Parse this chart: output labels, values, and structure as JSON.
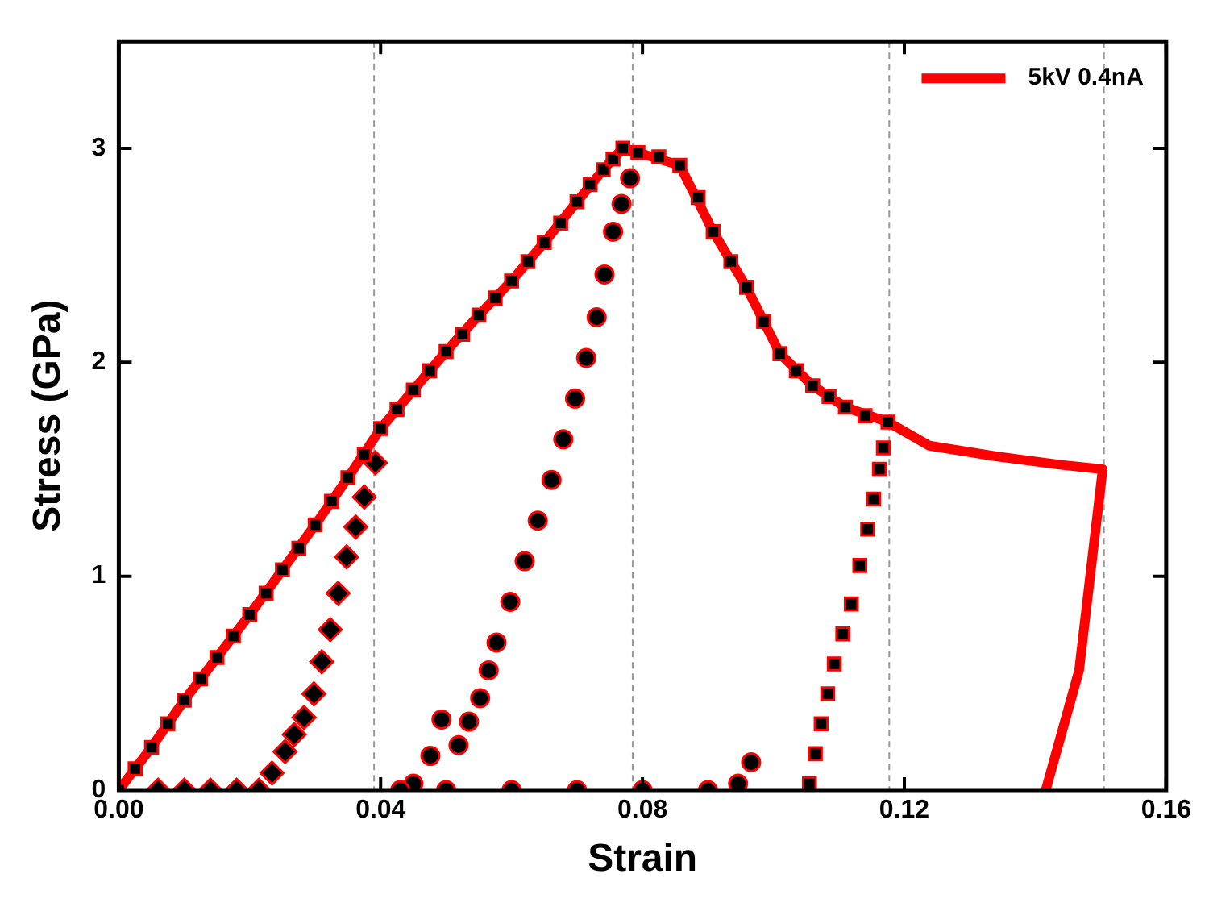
{
  "chart_data": {
    "type": "line",
    "xlabel": "Strain",
    "ylabel": "Stress (GPa)",
    "xlim": [
      0,
      0.16
    ],
    "ylim": [
      0,
      3.5
    ],
    "xticks": [
      {
        "value": 0,
        "label": "0.00"
      },
      {
        "value": 0.04,
        "label": "0.04"
      },
      {
        "value": 0.08,
        "label": "0.08"
      },
      {
        "value": 0.12,
        "label": "0.12"
      },
      {
        "value": 0.16,
        "label": "0.16"
      }
    ],
    "yticks": [
      0,
      1,
      2,
      3
    ],
    "grid": false,
    "legend": "top right",
    "ref_lines": [
      {
        "axis": "x",
        "value": 0.039,
        "color": "#999999",
        "line_style": "dashed"
      },
      {
        "axis": "x",
        "value": 0.0785,
        "color": "#999999",
        "line_style": "dashed"
      },
      {
        "axis": "x",
        "value": 0.1177,
        "color": "#999999",
        "line_style": "dashed"
      },
      {
        "axis": "x",
        "value": 0.1505,
        "color": "#999999",
        "line_style": "dashed"
      }
    ],
    "series": [
      {
        "name": "5kV 0.4nA",
        "type": "line",
        "color": "#ff0000",
        "marker": "none",
        "x": [
          0,
          0.005,
          0.01,
          0.015,
          0.02,
          0.025,
          0.03,
          0.035,
          0.04,
          0.045,
          0.05,
          0.055,
          0.06,
          0.065,
          0.07,
          0.074,
          0.077,
          0.0793,
          0.0857,
          0.0908,
          0.0959,
          0.101,
          0.106,
          0.111,
          0.1175,
          0.1238,
          0.134,
          0.144,
          0.1503,
          0.1467,
          0.1416
        ],
        "values": [
          0,
          0.2,
          0.42,
          0.62,
          0.82,
          1.03,
          1.24,
          1.46,
          1.69,
          1.87,
          2.05,
          2.22,
          2.38,
          2.56,
          2.75,
          2.9,
          3.0,
          2.98,
          2.92,
          2.61,
          2.35,
          2.04,
          1.89,
          1.79,
          1.72,
          1.61,
          1.56,
          1.52,
          1.5,
          0.56,
          0
        ]
      },
      {
        "type": "scatter",
        "color": "#000000",
        "marker": "square",
        "x": [
          0,
          0.0025,
          0.005,
          0.0075,
          0.01,
          0.0125,
          0.015,
          0.0175,
          0.02,
          0.0225,
          0.025,
          0.0275,
          0.03,
          0.0325,
          0.035,
          0.0375,
          0.04,
          0.0425,
          0.045,
          0.0475,
          0.05,
          0.0525,
          0.055,
          0.0575,
          0.06,
          0.0625,
          0.065,
          0.0675,
          0.07,
          0.072,
          0.074,
          0.0755,
          0.077,
          0.0793,
          0.0825,
          0.0857,
          0.0885,
          0.0908,
          0.0935,
          0.0959,
          0.0985,
          0.101,
          0.1035,
          0.106,
          0.1085,
          0.111,
          0.114,
          0.1175
        ],
        "values": [
          0,
          0.1,
          0.2,
          0.31,
          0.42,
          0.52,
          0.62,
          0.72,
          0.82,
          0.92,
          1.03,
          1.13,
          1.24,
          1.35,
          1.46,
          1.57,
          1.69,
          1.78,
          1.87,
          1.96,
          2.05,
          2.13,
          2.22,
          2.3,
          2.38,
          2.47,
          2.56,
          2.65,
          2.75,
          2.83,
          2.9,
          2.95,
          3.0,
          2.98,
          2.96,
          2.92,
          2.77,
          2.61,
          2.47,
          2.35,
          2.19,
          2.04,
          1.96,
          1.89,
          1.84,
          1.79,
          1.75,
          1.72
        ]
      },
      {
        "type": "scatter",
        "color": "#000000",
        "marker": "diamond",
        "x": [
          0.0392,
          0.0375,
          0.0362,
          0.0348,
          0.0335,
          0.0323,
          0.031,
          0.0298,
          0.0283,
          0.0268,
          0.0254,
          0.0234,
          0.0214,
          0.018,
          0.014,
          0.01,
          0.006
        ],
        "values": [
          1.53,
          1.37,
          1.23,
          1.09,
          0.92,
          0.75,
          0.6,
          0.45,
          0.34,
          0.26,
          0.18,
          0.08,
          0,
          0,
          0,
          0,
          0
        ]
      },
      {
        "type": "scatter",
        "color": "#000000",
        "marker": "circle",
        "x": [
          0.0781,
          0.0768,
          0.0755,
          0.0742,
          0.073,
          0.0714,
          0.0697,
          0.0679,
          0.0661,
          0.064,
          0.062,
          0.0598,
          0.0577,
          0.0565,
          0.0552,
          0.0535,
          0.0519,
          0.0493,
          0.0476,
          0.045,
          0.043,
          0.05,
          0.06,
          0.07,
          0.08,
          0.09,
          0.0946,
          0.0966
        ],
        "values": [
          2.86,
          2.74,
          2.61,
          2.41,
          2.21,
          2.02,
          1.83,
          1.64,
          1.45,
          1.26,
          1.07,
          0.88,
          0.69,
          0.56,
          0.43,
          0.32,
          0.21,
          0.33,
          0.16,
          0.03,
          0,
          0,
          0,
          0,
          0,
          0,
          0.03,
          0.13
        ]
      },
      {
        "type": "scatter",
        "color": "#000000",
        "marker": "square",
        "x": [
          0.1168,
          0.1162,
          0.1153,
          0.1144,
          0.1132,
          0.1119,
          0.1106,
          0.1093,
          0.1083,
          0.1073,
          0.1064,
          0.1055
        ],
        "values": [
          1.6,
          1.5,
          1.36,
          1.22,
          1.05,
          0.87,
          0.73,
          0.59,
          0.45,
          0.31,
          0.17,
          0.03
        ]
      }
    ]
  }
}
